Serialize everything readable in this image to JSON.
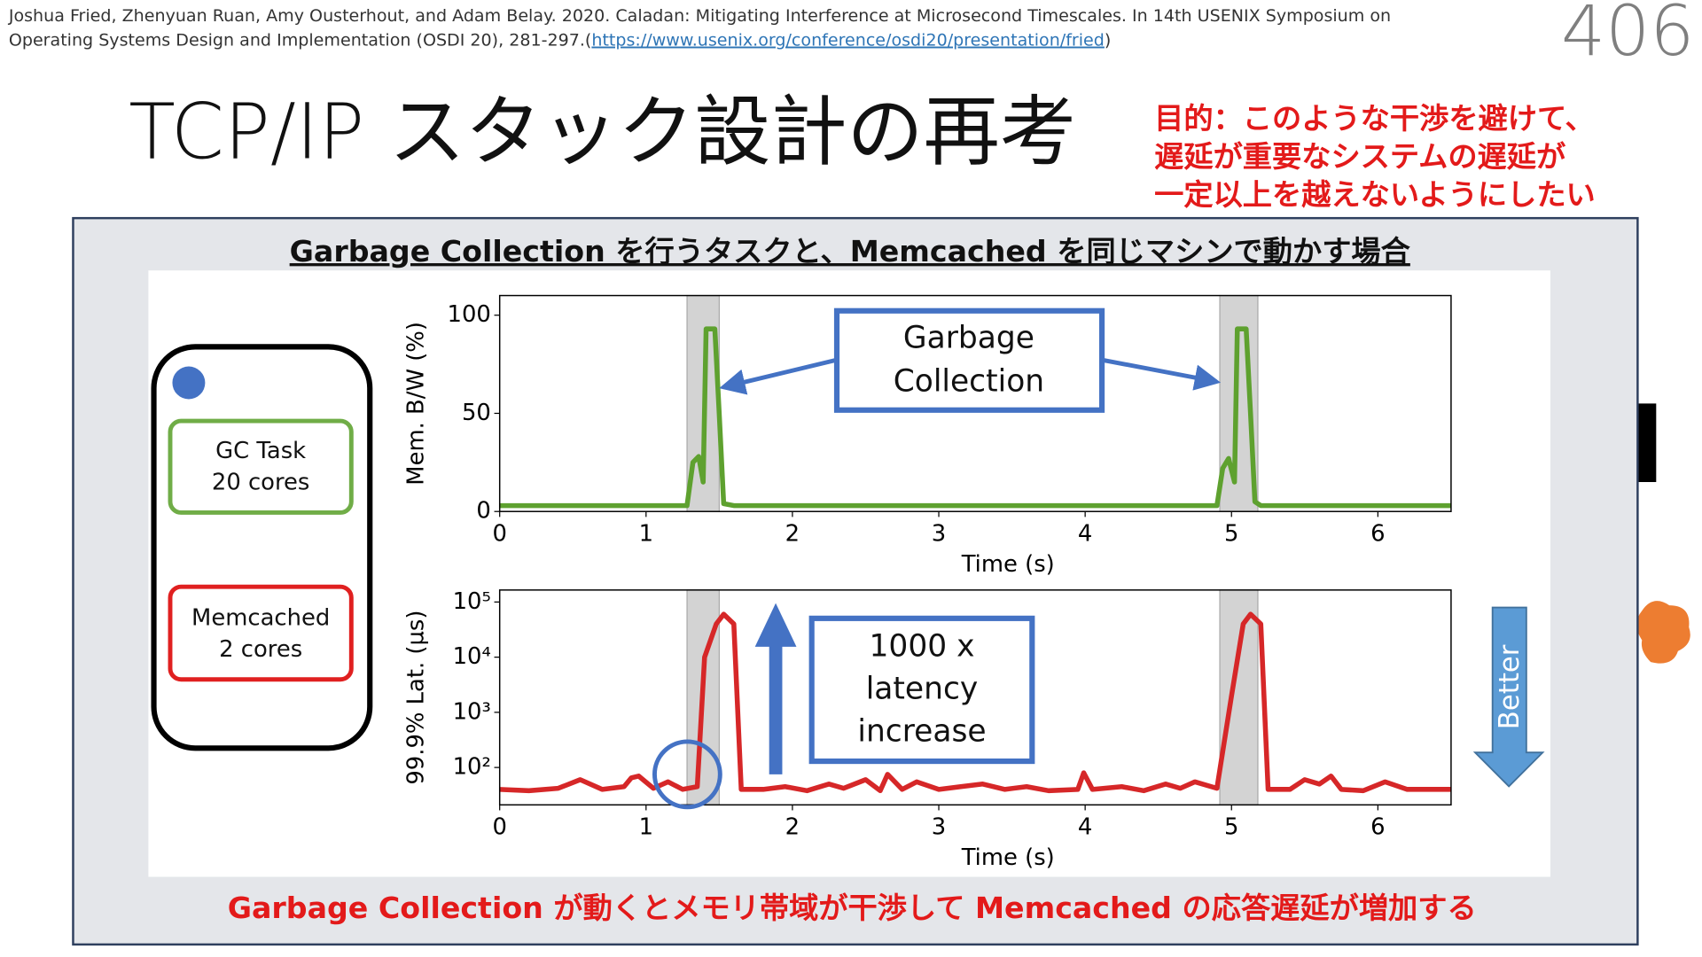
{
  "citation": {
    "line1": "Joshua Fried, Zhenyuan Ruan, Amy Ousterhout, and Adam Belay. 2020. Caladan: Mitigating Interference at Microsecond Timescales. In 14th USENIX Symposium on",
    "prefix": "Operating Systems Design and Implementation (OSDI 20), 281-297.(",
    "link": "https://www.usenix.org/conference/osdi20/presentation/fried",
    "suffix": ")"
  },
  "page_number": "406",
  "title": "TCP/IP スタック設計の再考",
  "goal": [
    "目的：このような干渉を避けて、",
    "遅延が重要なシステムの遅延が",
    "一定以上を越えないようにしたい"
  ],
  "panel_title": "Garbage Collection を行うタスクと、Memcached を同じマシンで動かす場合",
  "legend_boxes": [
    [
      "GC Task",
      "20 cores"
    ],
    [
      "Memcached",
      "2 cores"
    ]
  ],
  "callouts": {
    "gc": [
      "Garbage",
      "Collection"
    ],
    "latency": [
      "1000 x",
      "latency",
      "increase"
    ],
    "better": "Better"
  },
  "footer": "Garbage Collection が動くとメモリ帯域が干渉して Memcached の応答遅延が増加する",
  "chart_data": [
    {
      "type": "line",
      "xlabel": "Time (s)",
      "ylabel": "Mem. B/W (%)",
      "xlim": [
        0,
        6.5
      ],
      "ylim": [
        0,
        110
      ],
      "xticks": [
        0,
        1,
        2,
        3,
        4,
        5,
        6
      ],
      "yticks": [
        0,
        50,
        100
      ],
      "shaded_spans": [
        [
          1.28,
          1.5
        ],
        [
          4.92,
          5.18
        ]
      ],
      "x": [
        0,
        0.3,
        0.6,
        0.9,
        1.2,
        1.28,
        1.32,
        1.36,
        1.39,
        1.41,
        1.44,
        1.47,
        1.5,
        1.53,
        1.6,
        2,
        2.4,
        2.8,
        3.2,
        3.6,
        4,
        4.4,
        4.8,
        4.9,
        4.94,
        4.98,
        5.02,
        5.04,
        5.07,
        5.1,
        5.13,
        5.16,
        5.2,
        5.3,
        5.7,
        6.1,
        6.5
      ],
      "series": [
        {
          "color": "#5ea12f",
          "values": [
            3,
            3,
            3,
            3,
            3,
            3,
            25,
            28,
            15,
            93,
            93,
            93,
            50,
            4,
            3,
            3,
            3,
            3,
            3,
            3,
            3,
            3,
            3,
            3,
            22,
            27,
            15,
            93,
            93,
            93,
            50,
            5,
            3,
            3,
            3,
            3,
            3
          ]
        }
      ]
    },
    {
      "type": "line",
      "log_y": true,
      "xlabel": "Time (s)",
      "ylabel": "99.9% Lat. (µs)",
      "xlim": [
        0,
        6.5
      ],
      "ylim": [
        21,
        165000
      ],
      "xticks": [
        0,
        1,
        2,
        3,
        4,
        5,
        6
      ],
      "yticks": [
        {
          "value": 100,
          "label": "10²"
        },
        {
          "value": 1000,
          "label": "10³"
        },
        {
          "value": 10000,
          "label": "10⁴"
        },
        {
          "value": 100000,
          "label": "10⁵"
        }
      ],
      "shaded_spans": [
        [
          1.28,
          1.5
        ],
        [
          4.92,
          5.18
        ]
      ],
      "x": [
        0,
        0.2,
        0.4,
        0.55,
        0.7,
        0.85,
        0.9,
        0.95,
        1.05,
        1.15,
        1.25,
        1.35,
        1.4,
        1.48,
        1.53,
        1.6,
        1.65,
        1.8,
        1.95,
        2.1,
        2.25,
        2.35,
        2.5,
        2.6,
        2.65,
        2.75,
        2.85,
        3.0,
        3.15,
        3.3,
        3.45,
        3.6,
        3.75,
        3.95,
        3.99,
        4.05,
        4.25,
        4.4,
        4.55,
        4.65,
        4.75,
        4.9,
        5.0,
        5.08,
        5.13,
        5.2,
        5.25,
        5.4,
        5.5,
        5.6,
        5.68,
        5.75,
        5.9,
        6.05,
        6.2,
        6.5
      ],
      "series": [
        {
          "color": "#d62728",
          "values": [
            40,
            38,
            42,
            60,
            40,
            45,
            65,
            70,
            42,
            55,
            40,
            45,
            10000,
            40000,
            60000,
            40000,
            40,
            40,
            45,
            38,
            50,
            42,
            60,
            38,
            75,
            40,
            55,
            40,
            45,
            50,
            40,
            45,
            38,
            40,
            80,
            40,
            45,
            38,
            50,
            42,
            55,
            42,
            2000,
            40000,
            60000,
            40000,
            40,
            40,
            60,
            50,
            70,
            40,
            38,
            55,
            40,
            40
          ]
        }
      ]
    }
  ]
}
